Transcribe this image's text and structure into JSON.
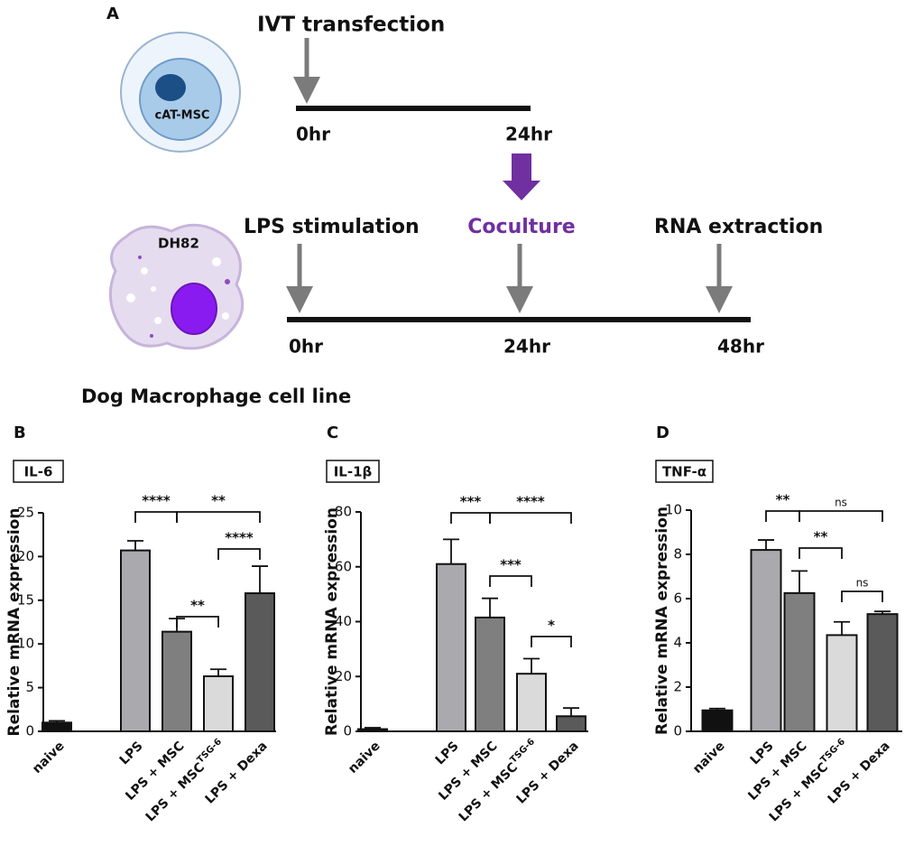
{
  "diagram": {
    "panel_label": "A",
    "top_cell": "cAT-MSC",
    "top_step": "IVT transfection",
    "top_times": [
      "0hr",
      "24hr"
    ],
    "bottom_cell": "DH82",
    "bottom_steps": [
      "LPS stimulation",
      "Coculture",
      "RNA extraction"
    ],
    "bottom_times": [
      "0hr",
      "24hr",
      "48hr"
    ],
    "caption": "Dog Macrophage cell line"
  },
  "chart_data": [
    {
      "type": "bar",
      "panel_label": "B",
      "title": "IL-6",
      "y_label": "Relative mRNA expression",
      "categories": [
        "naive",
        "LPS",
        "LPS + MSC",
        {
          "text": "LPS + MSC",
          "sup": "TSG-6"
        },
        "LPS + Dexa"
      ],
      "values": [
        1.0,
        20.7,
        11.4,
        6.3,
        15.8
      ],
      "errors": [
        0.2,
        1.1,
        1.5,
        0.8,
        3.1
      ],
      "colors": [
        "#111111",
        "#a9a9ae",
        "#7f7f80",
        "#dadada",
        "#5a5a5a"
      ],
      "ylim": [
        0,
        25
      ],
      "yticks": [
        0,
        5,
        10,
        15,
        20,
        25
      ],
      "significance": [
        "****",
        "**",
        "****",
        "**"
      ]
    },
    {
      "type": "bar",
      "panel_label": "C",
      "title": "IL-1β",
      "y_label": "Relative mRNA expression",
      "categories": [
        "naive",
        "LPS",
        "LPS + MSC",
        {
          "text": "LPS + MSC",
          "sup": "TSG-6"
        },
        "LPS + Dexa"
      ],
      "values": [
        0.8,
        61,
        41.5,
        21,
        5.5
      ],
      "errors": [
        0.5,
        9,
        7,
        5.5,
        3
      ],
      "colors": [
        "#111111",
        "#a9a9ae",
        "#7f7f80",
        "#dadada",
        "#5a5a5a"
      ],
      "ylim": [
        0,
        80
      ],
      "yticks": [
        0,
        20,
        40,
        60,
        80
      ],
      "significance": [
        "***",
        "****",
        "***",
        "*"
      ]
    },
    {
      "type": "bar",
      "panel_label": "D",
      "title": "TNF-α",
      "y_label": "Relative mRNA expression",
      "categories": [
        "naive",
        "LPS",
        "LPS + MSC",
        {
          "text": "LPS + MSC",
          "sup": "TSG-6"
        },
        "LPS + Dexa"
      ],
      "values": [
        0.95,
        8.2,
        6.25,
        4.35,
        5.3
      ],
      "errors": [
        0.08,
        0.45,
        1.0,
        0.6,
        0.12
      ],
      "colors": [
        "#111111",
        "#a9a9ae",
        "#7f7f80",
        "#dadada",
        "#5a5a5a"
      ],
      "ylim": [
        0,
        10
      ],
      "yticks": [
        0,
        2,
        4,
        6,
        8,
        10
      ],
      "significance": [
        "**",
        "ns",
        "**",
        "ns"
      ]
    }
  ]
}
